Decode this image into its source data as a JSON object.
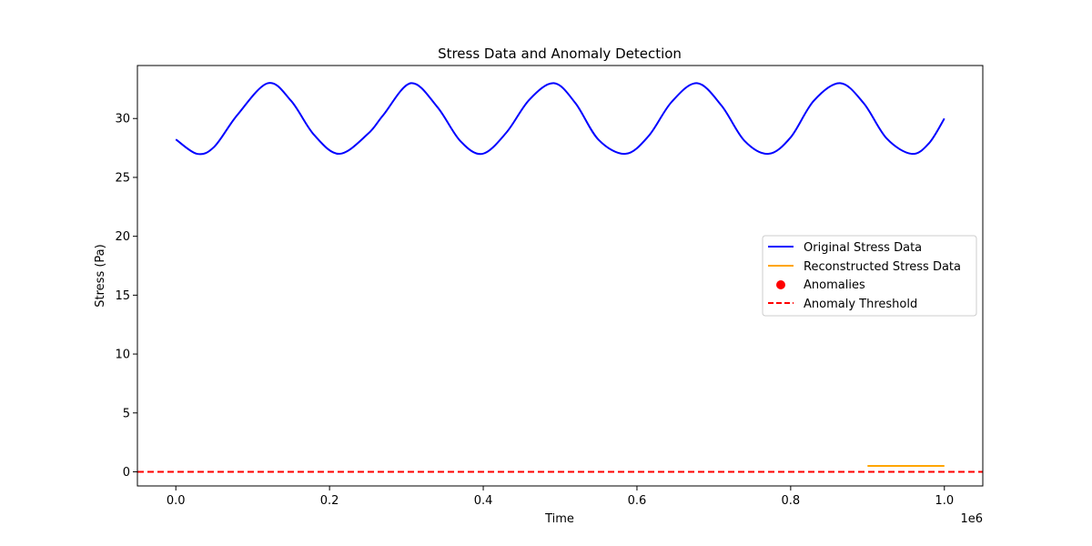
{
  "chart_data": {
    "type": "line",
    "title": "Stress Data and Anomaly Detection",
    "xlabel": "Time",
    "ylabel": "Stress (Pa)",
    "x_offset_label": "1e6",
    "xlim": [
      -50000,
      1050000
    ],
    "ylim": [
      -1.2,
      34.5
    ],
    "xticks": [
      0,
      200000,
      400000,
      600000,
      800000,
      1000000
    ],
    "xtick_labels": [
      "0.0",
      "0.2",
      "0.4",
      "0.6",
      "0.8",
      "1.0"
    ],
    "yticks": [
      0,
      5,
      10,
      15,
      20,
      25,
      30
    ],
    "ytick_labels": [
      "0",
      "5",
      "10",
      "15",
      "20",
      "25",
      "30"
    ],
    "grid": false,
    "legend_position": "center-right",
    "series": [
      {
        "name": "Original Stress Data",
        "kind": "line",
        "color": "#0000ff",
        "dash": "solid",
        "x": [
          0,
          27600,
          50000,
          80000,
          119700,
          150000,
          180000,
          212800,
          250000,
          270000,
          305800,
          340000,
          370000,
          398900,
          430000,
          460000,
          491900,
          520000,
          550000,
          585000,
          615000,
          645000,
          678100,
          710000,
          740000,
          771200,
          800000,
          830000,
          864300,
          895000,
          925000,
          957400,
          980000,
          1000000
        ],
        "y": [
          28.23,
          27.0,
          27.6,
          30.3,
          33.0,
          31.5,
          28.6,
          27.0,
          28.7,
          30.3,
          33.0,
          31.0,
          28.1,
          27.0,
          28.8,
          31.6,
          33.0,
          31.3,
          28.2,
          27.0,
          28.5,
          31.4,
          33.0,
          31.1,
          28.1,
          27.0,
          28.4,
          31.5,
          33.0,
          31.3,
          28.3,
          27.0,
          27.9,
          30.0
        ]
      },
      {
        "name": "Reconstructed Stress Data",
        "kind": "line",
        "color": "#ffa500",
        "dash": "solid",
        "x": [
          900000,
          1000000
        ],
        "y": [
          0.5,
          0.5
        ]
      },
      {
        "name": "Anomalies",
        "kind": "scatter",
        "color": "#ff0000",
        "x": [],
        "y": []
      },
      {
        "name": "Anomaly Threshold",
        "kind": "hline",
        "color": "#ff0000",
        "dash": "dashed",
        "y": 0
      }
    ]
  }
}
